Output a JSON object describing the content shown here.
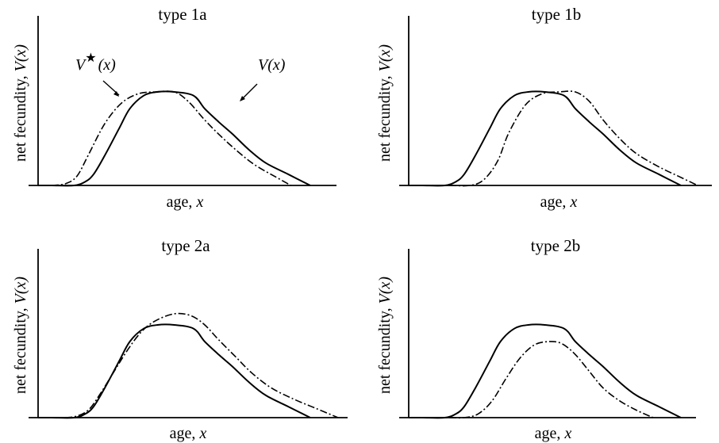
{
  "figure": {
    "x_label_prefix": "age, ",
    "x_label_var": "x",
    "y_label_prefix": "net fecundity, ",
    "y_label_var": "V(x)"
  },
  "annotations": {
    "vstar_base": "V",
    "vstar_star": "★",
    "vstar_arg": "(x)",
    "v_label": "V(x)"
  },
  "chart_data": [
    {
      "type": "line",
      "title": "type 1a",
      "xlabel": "age, x",
      "ylabel": "net fecundity, V(x)",
      "series": [
        {
          "name": "V(x)",
          "style": "solid",
          "x": [
            0.0,
            0.05,
            0.13,
            0.17,
            0.2,
            0.24,
            0.29,
            0.33,
            0.38,
            0.43,
            0.49,
            0.56,
            0.6,
            0.65,
            0.7,
            0.76,
            0.82,
            0.9,
            0.98
          ],
          "y": [
            0.0,
            0.0,
            0.0,
            0.04,
            0.12,
            0.32,
            0.6,
            0.82,
            0.96,
            1.0,
            1.0,
            0.96,
            0.82,
            0.68,
            0.55,
            0.38,
            0.24,
            0.12,
            0.0
          ]
        },
        {
          "name": "V*(x)",
          "style": "dash-dot",
          "x": [
            0.0,
            0.05,
            0.1,
            0.14,
            0.18,
            0.24,
            0.3,
            0.36,
            0.42,
            0.49,
            0.54,
            0.6,
            0.66,
            0.72,
            0.78,
            0.85,
            0.91
          ],
          "y": [
            0.0,
            0.0,
            0.02,
            0.1,
            0.32,
            0.66,
            0.88,
            0.98,
            1.0,
            1.0,
            0.9,
            0.7,
            0.52,
            0.36,
            0.22,
            0.1,
            0.0
          ]
        }
      ]
    },
    {
      "type": "line",
      "title": "type 1b",
      "xlabel": "age, x",
      "ylabel": "net fecundity, V(x)",
      "series": [
        {
          "name": "V(x)",
          "style": "solid",
          "x": [
            0.0,
            0.05,
            0.13,
            0.17,
            0.2,
            0.24,
            0.29,
            0.33,
            0.38,
            0.43,
            0.49,
            0.56,
            0.6,
            0.65,
            0.7,
            0.76,
            0.82,
            0.9,
            0.98
          ],
          "y": [
            0.0,
            0.0,
            0.0,
            0.04,
            0.12,
            0.32,
            0.6,
            0.82,
            0.96,
            1.0,
            1.0,
            0.96,
            0.82,
            0.68,
            0.55,
            0.38,
            0.24,
            0.12,
            0.0
          ]
        },
        {
          "name": "V*(x)",
          "style": "dash-dot",
          "x": [
            0.0,
            0.14,
            0.22,
            0.27,
            0.32,
            0.36,
            0.42,
            0.48,
            0.54,
            0.6,
            0.65,
            0.7,
            0.76,
            0.82,
            0.9,
            0.97,
            1.04
          ],
          "y": [
            0.0,
            0.0,
            0.0,
            0.06,
            0.26,
            0.56,
            0.86,
            0.98,
            1.0,
            1.0,
            0.9,
            0.7,
            0.5,
            0.34,
            0.2,
            0.1,
            0.0
          ]
        }
      ]
    },
    {
      "type": "line",
      "title": "type 2a",
      "xlabel": "age, x",
      "ylabel": "net fecundity, V(x)",
      "series": [
        {
          "name": "V(x)",
          "style": "solid",
          "x": [
            0.0,
            0.05,
            0.13,
            0.17,
            0.2,
            0.24,
            0.29,
            0.33,
            0.38,
            0.43,
            0.49,
            0.56,
            0.6,
            0.65,
            0.7,
            0.76,
            0.82,
            0.9,
            0.98
          ],
          "y": [
            0.0,
            0.0,
            0.0,
            0.04,
            0.12,
            0.32,
            0.6,
            0.82,
            0.96,
            1.0,
            1.0,
            0.96,
            0.82,
            0.68,
            0.55,
            0.38,
            0.24,
            0.12,
            0.0
          ]
        },
        {
          "name": "V*(x)",
          "style": "dash-dot",
          "x": [
            0.0,
            0.06,
            0.13,
            0.18,
            0.22,
            0.27,
            0.32,
            0.37,
            0.42,
            0.49,
            0.55,
            0.6,
            0.65,
            0.71,
            0.77,
            0.84,
            0.92,
            1.0,
            1.08
          ],
          "y": [
            0.0,
            0.0,
            0.01,
            0.08,
            0.24,
            0.48,
            0.72,
            0.92,
            1.04,
            1.12,
            1.1,
            1.0,
            0.84,
            0.66,
            0.48,
            0.32,
            0.2,
            0.1,
            0.0
          ]
        }
      ]
    },
    {
      "type": "line",
      "title": "type 2b",
      "xlabel": "age, x",
      "ylabel": "net fecundity, V(x)",
      "series": [
        {
          "name": "V(x)",
          "style": "solid",
          "x": [
            0.0,
            0.05,
            0.13,
            0.17,
            0.2,
            0.24,
            0.29,
            0.33,
            0.38,
            0.43,
            0.49,
            0.56,
            0.6,
            0.65,
            0.7,
            0.76,
            0.82,
            0.9,
            0.98
          ],
          "y": [
            0.0,
            0.0,
            0.0,
            0.04,
            0.12,
            0.32,
            0.6,
            0.82,
            0.96,
            1.0,
            1.0,
            0.96,
            0.82,
            0.68,
            0.55,
            0.38,
            0.24,
            0.12,
            0.0
          ]
        },
        {
          "name": "V*(x)",
          "style": "dash-dot",
          "x": [
            0.0,
            0.14,
            0.2,
            0.25,
            0.3,
            0.35,
            0.4,
            0.45,
            0.5,
            0.55,
            0.6,
            0.65,
            0.7,
            0.76,
            0.82,
            0.88
          ],
          "y": [
            0.0,
            0.0,
            0.0,
            0.04,
            0.18,
            0.42,
            0.64,
            0.78,
            0.82,
            0.8,
            0.68,
            0.5,
            0.32,
            0.18,
            0.08,
            0.0
          ]
        }
      ]
    }
  ]
}
